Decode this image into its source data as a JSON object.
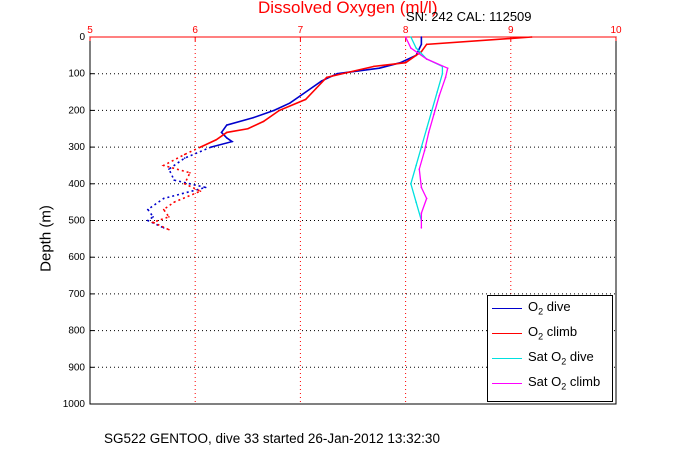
{
  "chart_data": {
    "type": "line",
    "title": "Dissolved Oxygen (ml/l)",
    "serial_cal": "SN: 242  CAL: 112509",
    "caption": "SG522 GENTOO, dive 33 started 26-Jan-2012 13:32:30",
    "xlabel": "",
    "ylabel": "Depth (m)",
    "xlim": [
      5,
      10
    ],
    "ylim": [
      0,
      1000
    ],
    "y_reversed": true,
    "x_axis_position": "top",
    "xticks": [
      "5",
      "6",
      "7",
      "8",
      "9",
      "10"
    ],
    "yticks": [
      "0",
      "100",
      "200",
      "300",
      "400",
      "500",
      "600",
      "700",
      "800",
      "900",
      "1000"
    ],
    "grid": true,
    "legend_position": "bottom-right",
    "series": [
      {
        "name": "O2 dive",
        "legend_main": "O",
        "legend_sub": "2",
        "legend_suffix": " dive",
        "color": "#0000cc",
        "style": "solid-then-dotted",
        "dotted_below_depth": 300,
        "points": [
          [
            8.15,
            0
          ],
          [
            8.15,
            20
          ],
          [
            8.1,
            50
          ],
          [
            7.95,
            70
          ],
          [
            7.75,
            85
          ],
          [
            7.35,
            100
          ],
          [
            7.2,
            120
          ],
          [
            7.0,
            160
          ],
          [
            6.9,
            180
          ],
          [
            6.75,
            200
          ],
          [
            6.55,
            220
          ],
          [
            6.3,
            240
          ],
          [
            6.25,
            260
          ],
          [
            6.3,
            275
          ],
          [
            6.35,
            285
          ],
          [
            6.15,
            300
          ],
          [
            5.9,
            330
          ],
          [
            5.75,
            360
          ],
          [
            5.8,
            390
          ],
          [
            6.1,
            410
          ],
          [
            5.7,
            440
          ],
          [
            5.55,
            470
          ],
          [
            5.6,
            490
          ],
          [
            5.55,
            500
          ],
          [
            5.7,
            520
          ]
        ]
      },
      {
        "name": "O2 climb",
        "legend_main": "O",
        "legend_sub": "2",
        "legend_suffix": " climb",
        "color": "#ff0000",
        "style": "solid-then-dotted",
        "dotted_below_depth": 300,
        "points": [
          [
            9.2,
            0
          ],
          [
            8.2,
            20
          ],
          [
            8.15,
            40
          ],
          [
            8.0,
            70
          ],
          [
            7.7,
            80
          ],
          [
            7.25,
            110
          ],
          [
            7.15,
            140
          ],
          [
            7.05,
            170
          ],
          [
            6.8,
            200
          ],
          [
            6.65,
            230
          ],
          [
            6.5,
            250
          ],
          [
            6.3,
            260
          ],
          [
            6.2,
            280
          ],
          [
            6.05,
            300
          ],
          [
            5.9,
            320
          ],
          [
            5.7,
            350
          ],
          [
            5.95,
            370
          ],
          [
            5.9,
            400
          ],
          [
            6.05,
            420
          ],
          [
            5.8,
            450
          ],
          [
            5.7,
            470
          ],
          [
            5.75,
            490
          ],
          [
            5.6,
            505
          ],
          [
            5.75,
            525
          ]
        ]
      },
      {
        "name": "Sat O2 dive",
        "legend_main": "Sat O",
        "legend_sub": "2",
        "legend_suffix": " dive",
        "color": "#00e0e0",
        "style": "solid",
        "points": [
          [
            8.05,
            0
          ],
          [
            8.1,
            30
          ],
          [
            8.2,
            60
          ],
          [
            8.35,
            80
          ],
          [
            8.35,
            100
          ],
          [
            8.3,
            150
          ],
          [
            8.25,
            200
          ],
          [
            8.2,
            250
          ],
          [
            8.15,
            300
          ],
          [
            8.1,
            350
          ],
          [
            8.05,
            400
          ],
          [
            8.1,
            450
          ],
          [
            8.15,
            500
          ]
        ]
      },
      {
        "name": "Sat O2 climb",
        "legend_main": "Sat O",
        "legend_sub": "2",
        "legend_suffix": " climb",
        "color": "#ff00ff",
        "style": "solid",
        "points": [
          [
            8.0,
            0
          ],
          [
            8.05,
            30
          ],
          [
            8.2,
            60
          ],
          [
            8.4,
            85
          ],
          [
            8.38,
            110
          ],
          [
            8.32,
            160
          ],
          [
            8.27,
            210
          ],
          [
            8.22,
            260
          ],
          [
            8.18,
            310
          ],
          [
            8.13,
            360
          ],
          [
            8.15,
            410
          ],
          [
            8.2,
            440
          ],
          [
            8.15,
            480
          ],
          [
            8.15,
            520
          ]
        ]
      }
    ]
  }
}
